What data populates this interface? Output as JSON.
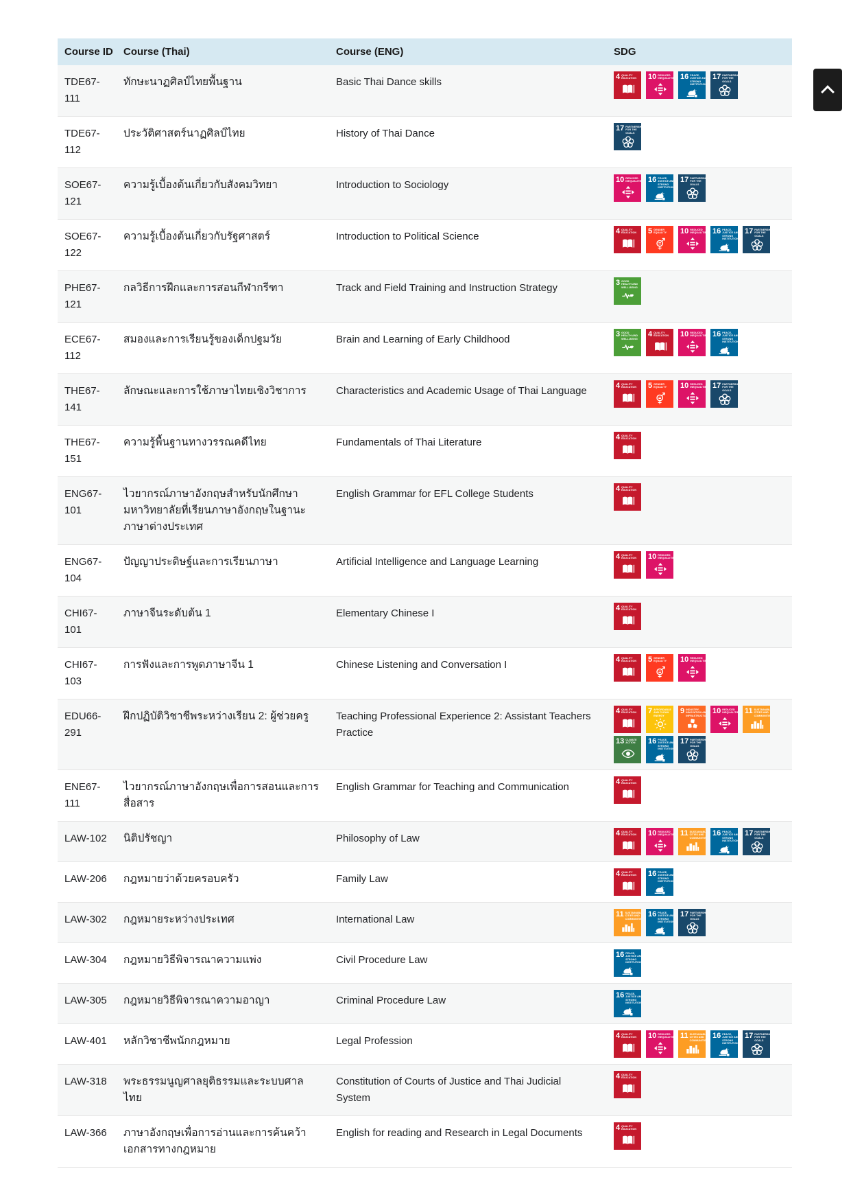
{
  "table": {
    "headers": [
      "Course ID",
      "Course (Thai)",
      "Course (ENG)",
      "SDG"
    ],
    "rows": [
      {
        "id": "TDE67-111",
        "thai": "ทักษะนาฏศิลป์ไทยพื้นฐาน",
        "eng": "Basic Thai Dance skills",
        "sdgs": [
          4,
          10,
          16,
          17
        ]
      },
      {
        "id": "TDE67-112",
        "thai": "ประวัติศาสตร์นาฏศิลป์ไทย",
        "eng": "History of Thai Dance",
        "sdgs": [
          17
        ]
      },
      {
        "id": "SOE67-121",
        "thai": "ความรู้เบื้องต้นเกี่ยวกับสังคมวิทยา",
        "eng": "Introduction to Sociology",
        "sdgs": [
          10,
          16,
          17
        ]
      },
      {
        "id": "SOE67-122",
        "thai": "ความรู้เบื้องต้นเกี่ยวกับรัฐศาสตร์",
        "eng": "Introduction to Political Science",
        "sdgs": [
          4,
          5,
          10,
          16,
          17
        ]
      },
      {
        "id": "PHE67-121",
        "thai": "กลวิธีการฝึกและการสอนกีฬากรีฑา",
        "eng": "Track and Field Training and Instruction Strategy",
        "sdgs": [
          3
        ]
      },
      {
        "id": "ECE67-112",
        "thai": "สมองและการเรียนรู้ของเด็กปฐมวัย",
        "eng": "Brain and Learning of Early Childhood",
        "sdgs": [
          3,
          4,
          10,
          16
        ]
      },
      {
        "id": "THE67-141",
        "thai": "ลักษณะและการใช้ภาษาไทยเชิงวิชาการ",
        "eng": "Characteristics and Academic Usage of Thai Language",
        "sdgs": [
          4,
          5,
          10,
          17
        ]
      },
      {
        "id": "THE67-151",
        "thai": "ความรู้พื้นฐานทางวรรณคดีไทย",
        "eng": "Fundamentals of Thai Literature",
        "sdgs": [
          4
        ]
      },
      {
        "id": "ENG67-101",
        "thai": "ไวยากรณ์ภาษาอังกฤษสำหรับนักศึกษามหาวิทยาลัยที่เรียนภาษาอังกฤษในฐานะภาษาต่างประเทศ",
        "eng": "English Grammar for EFL College Students",
        "sdgs": [
          4
        ]
      },
      {
        "id": "ENG67-104",
        "thai": "ปัญญาประดิษฐ์และการเรียนภาษา",
        "eng": "Artificial Intelligence and Language Learning",
        "sdgs": [
          4,
          10
        ]
      },
      {
        "id": "CHI67-101",
        "thai": "ภาษาจีนระดับต้น 1",
        "eng": "Elementary Chinese I",
        "sdgs": [
          4
        ]
      },
      {
        "id": "CHI67-103",
        "thai": "การฟังและการพูดภาษาจีน 1",
        "eng": "Chinese Listening and Conversation I",
        "sdgs": [
          4,
          5,
          10
        ]
      },
      {
        "id": "EDU66-291",
        "thai": "ฝึกปฏิบัติวิชาชีพระหว่างเรียน 2: ผู้ช่วยครู",
        "eng": "Teaching Professional Experience 2: Assistant Teachers Practice",
        "sdgs": [
          4,
          7,
          9,
          10,
          11,
          13,
          16,
          17
        ]
      },
      {
        "id": "ENE67-111",
        "thai": "ไวยากรณ์ภาษาอังกฤษเพื่อการสอนและการสื่อสาร",
        "eng": "English Grammar for Teaching and Communication",
        "sdgs": [
          4
        ]
      },
      {
        "id": "LAW-102",
        "thai": "นิติปรัชญา",
        "eng": "Philosophy of Law",
        "sdgs": [
          4,
          10,
          11,
          16,
          17
        ]
      },
      {
        "id": "LAW-206",
        "thai": "กฎหมายว่าด้วยครอบครัว",
        "eng": "Family Law",
        "sdgs": [
          4,
          16
        ]
      },
      {
        "id": "LAW-302",
        "thai": "กฎหมายระหว่างประเทศ",
        "eng": "International Law",
        "sdgs": [
          11,
          16,
          17
        ]
      },
      {
        "id": "LAW-304",
        "thai": "กฎหมายวิธีพิจารณาความแพ่ง",
        "eng": "Civil Procedure Law",
        "sdgs": [
          16
        ]
      },
      {
        "id": "LAW-305",
        "thai": "กฎหมายวิธีพิจารณาความอาญา",
        "eng": "Criminal Procedure Law",
        "sdgs": [
          16
        ]
      },
      {
        "id": "LAW-401",
        "thai": "หลักวิชาชีพนักกฎหมาย",
        "eng": "Legal Profession",
        "sdgs": [
          4,
          10,
          11,
          16,
          17
        ]
      },
      {
        "id": "LAW-318",
        "thai": "พระธรรมนูญศาลยุติธรรมและระบบศาลไทย",
        "eng": "Constitution of Courts of Justice and Thai Judicial System",
        "sdgs": [
          4
        ]
      },
      {
        "id": "LAW-366",
        "thai": "ภาษาอังกฤษเพื่อการอ่านและการค้นคว้าเอกสารทางกฎหมาย",
        "eng": "English for reading and Research in Legal Documents",
        "sdgs": [
          4
        ]
      }
    ]
  },
  "sdg_goals": {
    "3": {
      "num": "3",
      "title": "Good Health and Well-Being",
      "color": "#4C9F38",
      "glyph": "heartbeat-icon"
    },
    "4": {
      "num": "4",
      "title": "Quality Education",
      "color": "#C5192D",
      "glyph": "open-book-icon"
    },
    "5": {
      "num": "5",
      "title": "Gender Equality",
      "color": "#FF3A21",
      "glyph": "gender-equality-icon"
    },
    "7": {
      "num": "7",
      "title": "Affordable and Clean Energy",
      "color": "#FCC30B",
      "glyph": "sun-icon"
    },
    "9": {
      "num": "9",
      "title": "Industry, Innovation and Infrastructure",
      "color": "#FD6925",
      "glyph": "cubes-icon"
    },
    "10": {
      "num": "10",
      "title": "Reduced Inequalities",
      "color": "#DD1367",
      "glyph": "equality-arrows-icon"
    },
    "11": {
      "num": "11",
      "title": "Sustainable Cities and Communities",
      "color": "#FD9D24",
      "glyph": "city-skyline-icon"
    },
    "13": {
      "num": "13",
      "title": "Climate Action",
      "color": "#3F7E44",
      "glyph": "eye-globe-icon"
    },
    "16": {
      "num": "16",
      "title": "Peace, Justice and Strong Institutions",
      "color": "#00689D",
      "glyph": "dove-gavel-icon"
    },
    "17": {
      "num": "17",
      "title": "Partnerships for the Goals",
      "color": "#19486A",
      "glyph": "circle-wreath-icon"
    }
  },
  "scroll_top_button": {
    "icon": "chevron-up"
  },
  "colors": {
    "header_bg": "#D6E9F2",
    "row_alt_bg": "#F6F7F7",
    "divider": "#E4E4E4",
    "text": "#202124",
    "scroll_button_bg": "#1C1C1C"
  }
}
